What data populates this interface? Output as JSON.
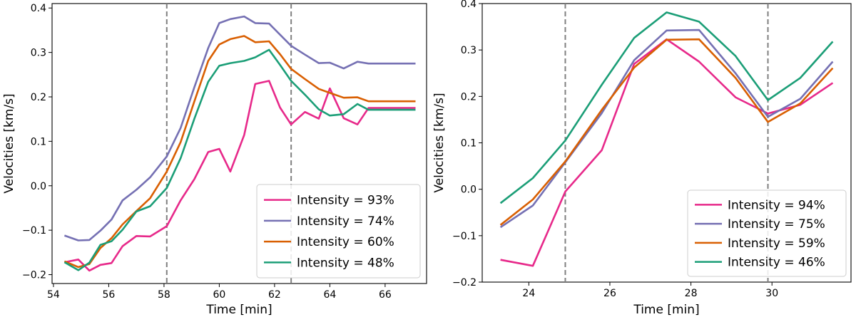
{
  "chart_data": [
    {
      "type": "line",
      "title": "",
      "xlabel": "Time [min]",
      "ylabel": "Velocities [km/s]",
      "xlim": [
        53.95,
        67.5
      ],
      "ylim": [
        -0.22,
        0.41
      ],
      "xticks": [
        54,
        56,
        58,
        60,
        62,
        64,
        66
      ],
      "yticks": [
        -0.2,
        -0.1,
        0.0,
        0.1,
        0.2,
        0.3,
        0.4
      ],
      "ytick_labels": [
        "−0.2",
        "−0.1",
        "0.0",
        "0.1",
        "0.2",
        "0.3",
        "0.4"
      ],
      "vlines": [
        58.1,
        62.6
      ],
      "legend_position": "lower-right",
      "x": [
        54.4,
        54.9,
        55.3,
        55.7,
        56.1,
        56.5,
        57.0,
        57.5,
        58.1,
        58.6,
        59.1,
        59.6,
        60.0,
        60.4,
        60.9,
        61.3,
        61.8,
        62.2,
        62.6,
        63.1,
        63.6,
        64.0,
        64.5,
        65.0,
        65.4,
        65.9,
        66.4,
        66.8,
        67.1
      ],
      "series": [
        {
          "name": "Intensity = 93%",
          "color": "#e7298a",
          "values": [
            -0.172,
            -0.166,
            -0.191,
            -0.178,
            -0.174,
            -0.136,
            -0.113,
            -0.114,
            -0.091,
            -0.033,
            0.015,
            0.076,
            0.083,
            0.032,
            0.114,
            0.229,
            0.236,
            0.176,
            0.138,
            0.166,
            0.151,
            0.219,
            0.152,
            0.138,
            0.175,
            0.175,
            0.175,
            0.175,
            0.175
          ]
        },
        {
          "name": "Intensity = 74%",
          "color": "#7570b3",
          "values": [
            -0.112,
            -0.123,
            -0.122,
            -0.101,
            -0.076,
            -0.033,
            -0.009,
            0.019,
            0.066,
            0.13,
            0.222,
            0.31,
            0.366,
            0.375,
            0.381,
            0.366,
            0.365,
            0.34,
            0.315,
            0.295,
            0.276,
            0.277,
            0.264,
            0.279,
            0.275,
            0.275,
            0.275,
            0.275,
            0.275
          ]
        },
        {
          "name": "Intensity = 60%",
          "color": "#d95f02",
          "values": [
            -0.17,
            -0.183,
            -0.176,
            -0.14,
            -0.118,
            -0.087,
            -0.057,
            -0.028,
            0.032,
            0.098,
            0.19,
            0.281,
            0.318,
            0.33,
            0.337,
            0.323,
            0.325,
            0.296,
            0.263,
            0.24,
            0.218,
            0.209,
            0.198,
            0.199,
            0.19,
            0.19,
            0.19,
            0.19,
            0.19
          ]
        },
        {
          "name": "Intensity = 48%",
          "color": "#1b9e77",
          "values": [
            -0.172,
            -0.19,
            -0.173,
            -0.133,
            -0.125,
            -0.099,
            -0.058,
            -0.046,
            -0.005,
            0.062,
            0.151,
            0.234,
            0.27,
            0.276,
            0.281,
            0.289,
            0.306,
            0.272,
            0.236,
            0.205,
            0.172,
            0.158,
            0.161,
            0.184,
            0.171,
            0.171,
            0.171,
            0.171,
            0.171
          ]
        }
      ]
    },
    {
      "type": "line",
      "title": "",
      "xlabel": "Time [min]",
      "ylabel": "Velocities [km/s]",
      "xlim": [
        22.85,
        31.95
      ],
      "ylim": [
        -0.2,
        0.4
      ],
      "xticks": [
        24,
        26,
        28,
        30
      ],
      "yticks": [
        -0.2,
        -0.1,
        0.0,
        0.1,
        0.2,
        0.3,
        0.4
      ],
      "ytick_labels": [
        "−0.2",
        "−0.1",
        "0.0",
        "0.1",
        "0.2",
        "0.3",
        "0.4"
      ],
      "vlines": [
        24.9,
        29.9
      ],
      "legend_position": "lower-right",
      "x": [
        23.3,
        24.1,
        24.9,
        25.8,
        26.6,
        27.4,
        28.2,
        29.1,
        29.9,
        30.7,
        31.5
      ],
      "series": [
        {
          "name": "Intensity = 94%",
          "color": "#e7298a",
          "values": [
            -0.152,
            -0.165,
            -0.005,
            0.084,
            0.27,
            0.323,
            0.275,
            0.198,
            0.163,
            0.182,
            0.229
          ]
        },
        {
          "name": "Intensity = 75%",
          "color": "#7570b3",
          "values": [
            -0.082,
            -0.035,
            0.058,
            0.164,
            0.278,
            0.342,
            0.343,
            0.25,
            0.156,
            0.195,
            0.275
          ]
        },
        {
          "name": "Intensity = 59%",
          "color": "#d95f02",
          "values": [
            -0.077,
            -0.022,
            0.06,
            0.171,
            0.262,
            0.322,
            0.323,
            0.24,
            0.145,
            0.185,
            0.261
          ]
        },
        {
          "name": "Intensity = 46%",
          "color": "#1b9e77",
          "values": [
            -0.03,
            0.024,
            0.105,
            0.225,
            0.326,
            0.381,
            0.361,
            0.287,
            0.192,
            0.24,
            0.318
          ]
        }
      ]
    }
  ]
}
